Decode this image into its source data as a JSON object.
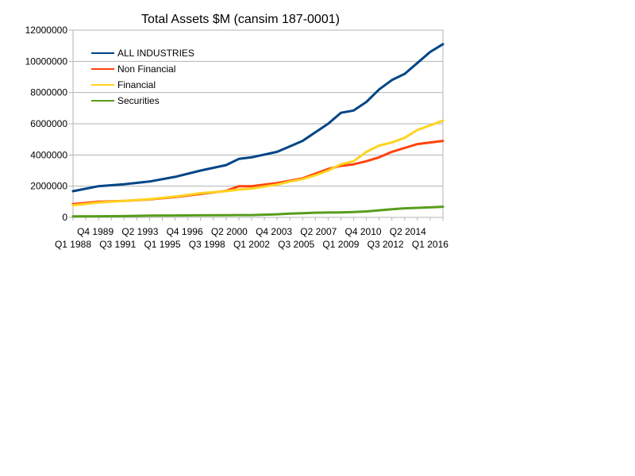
{
  "chart_data": {
    "type": "line",
    "title": "Total Assets $M (cansim 187-0001)",
    "xlabel": "",
    "ylabel": "",
    "ylim": [
      0,
      12000000
    ],
    "y_ticks": [
      "0",
      "2000000",
      "4000000",
      "6000000",
      "8000000",
      "10000000",
      "12000000"
    ],
    "grid": true,
    "legend_position": "top-left",
    "x_tick_labels_row1": [
      "Q4 1989",
      "Q2 1993",
      "Q4 1996",
      "Q2 2000",
      "Q4 2003",
      "Q2 2007",
      "Q4 2010",
      "Q2 2014"
    ],
    "x_tick_labels_row2": [
      "Q1 1988",
      "Q3 1991",
      "Q1 1995",
      "Q3 1998",
      "Q1 2002",
      "Q3 2005",
      "Q1 2009",
      "Q3 2012",
      "Q1 2016"
    ],
    "x_range": [
      "Q1 1988",
      "Q1 2017"
    ],
    "x": [
      1988.0,
      1990.0,
      1992.0,
      1994.0,
      1996.0,
      1998.0,
      2000.0,
      2001.0,
      2002.0,
      2004.0,
      2005.0,
      2006.0,
      2007.0,
      2008.0,
      2009.0,
      2010.0,
      2011.0,
      2012.0,
      2013.0,
      2014.0,
      2015.0,
      2016.0,
      2017.0
    ],
    "series": [
      {
        "name": "ALL INDUSTRIES",
        "color": "#004586",
        "values": [
          1680000,
          2000000,
          2120000,
          2300000,
          2600000,
          3000000,
          3350000,
          3750000,
          3850000,
          4200000,
          4550000,
          4900000,
          5450000,
          6000000,
          6700000,
          6850000,
          7400000,
          8200000,
          8800000,
          9200000,
          9900000,
          10600000,
          11100000
        ]
      },
      {
        "name": "Non Financial",
        "color": "#ff420e",
        "values": [
          850000,
          1000000,
          1050000,
          1150000,
          1300000,
          1500000,
          1700000,
          2000000,
          2000000,
          2200000,
          2350000,
          2500000,
          2800000,
          3100000,
          3300000,
          3400000,
          3600000,
          3850000,
          4200000,
          4450000,
          4700000,
          4800000,
          4900000
        ]
      },
      {
        "name": "Financial",
        "color": "#ffd320",
        "values": [
          780000,
          950000,
          1050000,
          1170000,
          1330000,
          1550000,
          1680000,
          1780000,
          1850000,
          2100000,
          2300000,
          2450000,
          2700000,
          3000000,
          3400000,
          3600000,
          4200000,
          4600000,
          4800000,
          5100000,
          5600000,
          5900000,
          6200000
        ]
      },
      {
        "name": "Securities",
        "color": "#579d1c",
        "values": [
          60000,
          70000,
          80000,
          110000,
          120000,
          130000,
          140000,
          145000,
          150000,
          200000,
          240000,
          270000,
          300000,
          310000,
          320000,
          340000,
          380000,
          450000,
          520000,
          580000,
          610000,
          640000,
          680000
        ]
      }
    ]
  }
}
